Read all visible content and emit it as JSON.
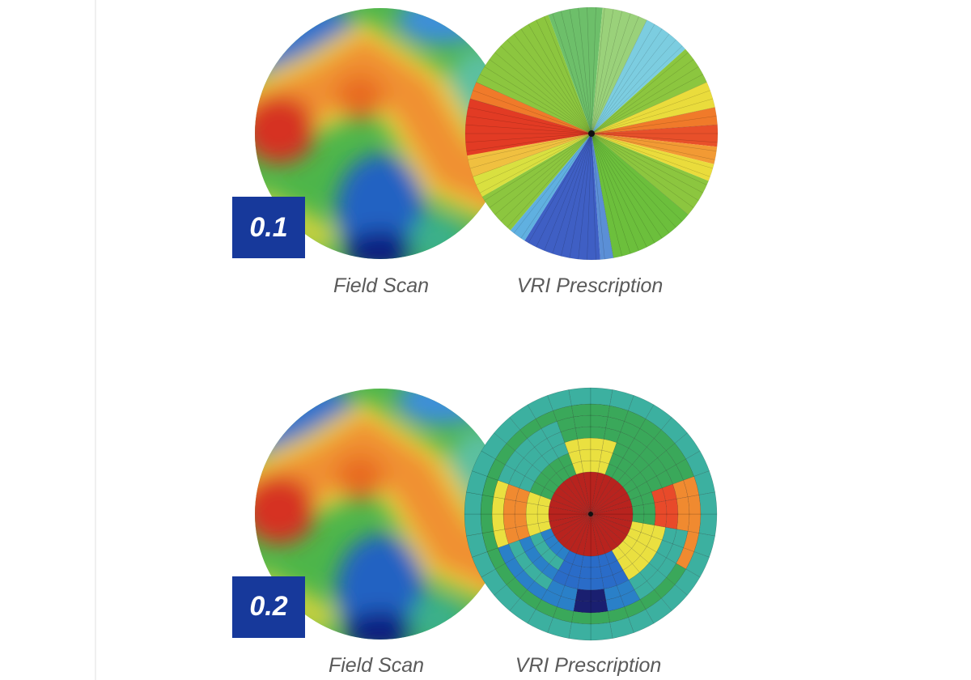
{
  "panels": [
    {
      "badge": "0.1",
      "left_label": "Field Scan",
      "right_label": "VRI Prescription"
    },
    {
      "badge": "0.2",
      "left_label": "Field Scan",
      "right_label": "VRI Prescription"
    }
  ]
}
